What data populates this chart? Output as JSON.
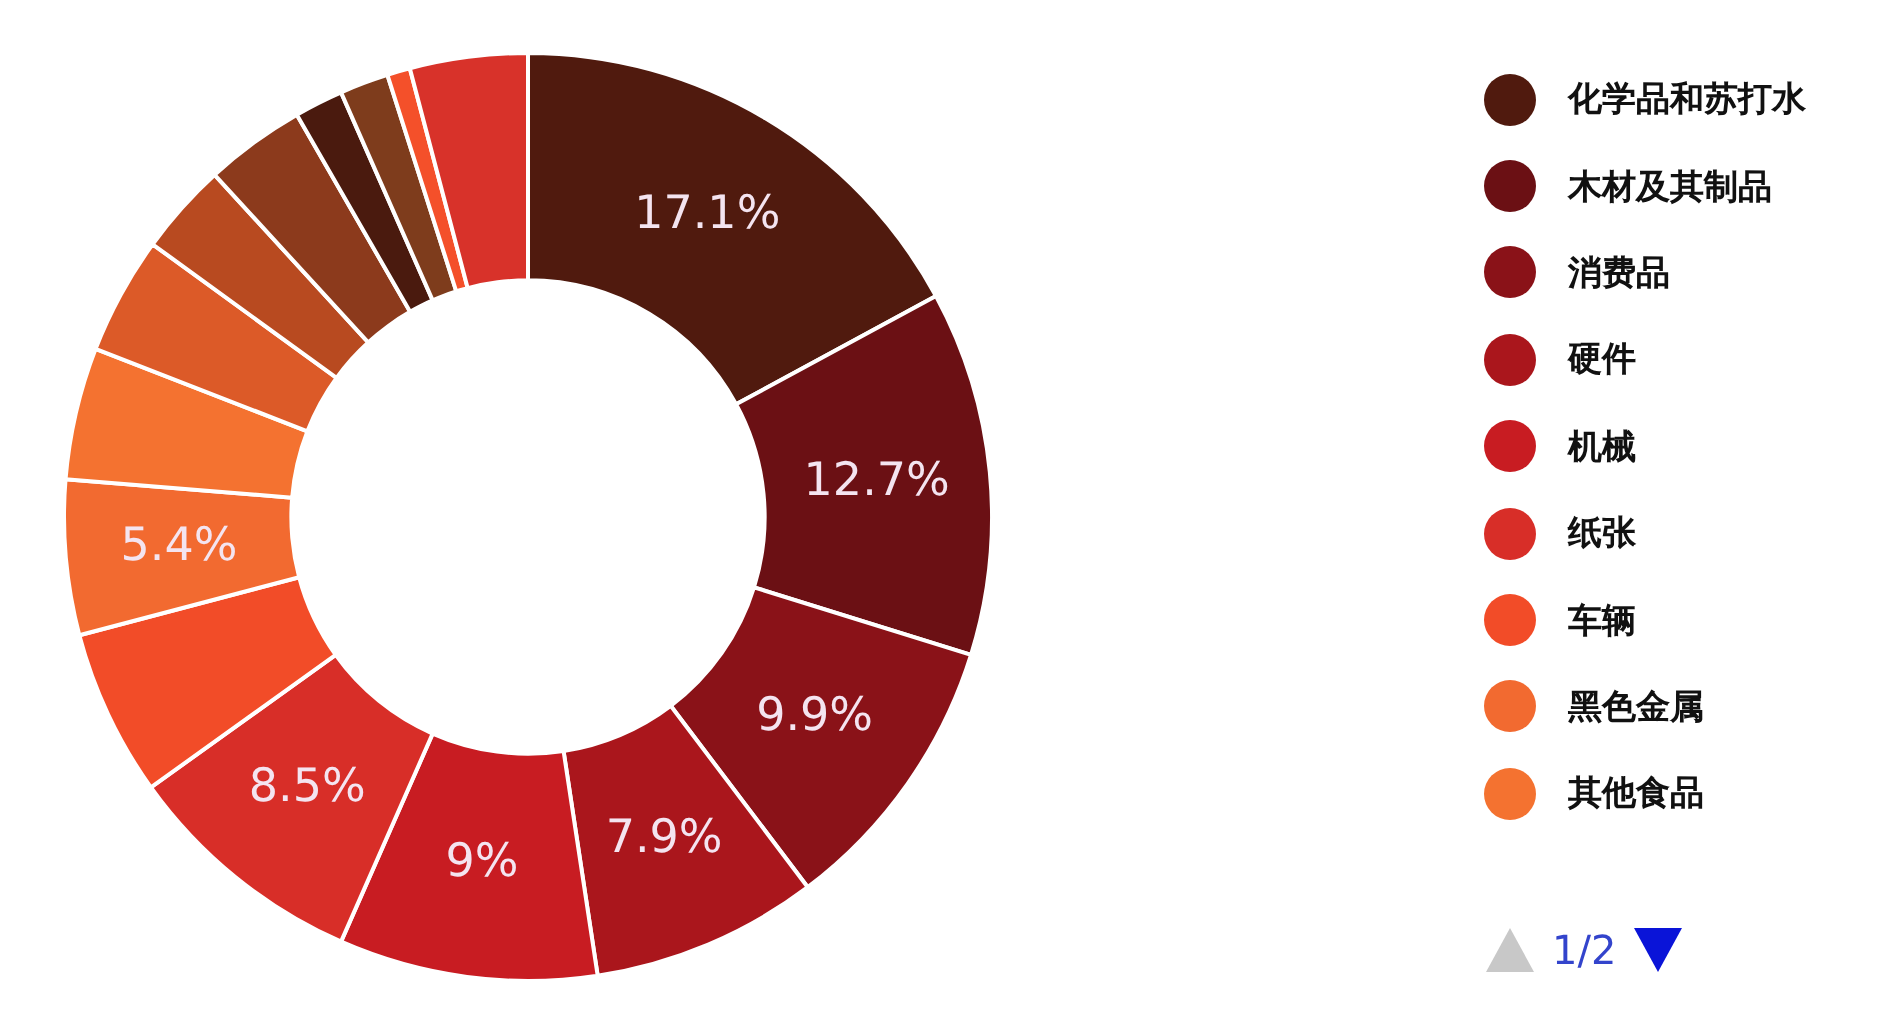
{
  "chart_data": {
    "type": "donut",
    "categories": [
      "化学品和苏打水",
      "木材及其制品",
      "消费品",
      "硬件",
      "机械",
      "纸张",
      "车辆",
      "黑色金属",
      "其他食品",
      null,
      null,
      null,
      null,
      null,
      null,
      null
    ],
    "values": [
      17.1,
      12.7,
      9.9,
      7.9,
      9,
      8.5,
      5.8,
      5.4,
      4.6,
      4.1,
      3.2,
      3.5,
      1.7,
      1.7,
      0.8,
      4.1
    ],
    "colors": [
      "#501a0e",
      "#6b1014",
      "#8a1218",
      "#aa161c",
      "#c81c22",
      "#d82e28",
      "#f24c28",
      "#f26a30",
      "#f47230",
      "#dc5a28",
      "#b84a20",
      "#8c3a1c",
      "#4a1a0e",
      "#7e3c1c",
      "#f4502a",
      "#d8322a"
    ],
    "value_labels": [
      "17.1%",
      "12.7%",
      "9.9%",
      "7.9%",
      "9%",
      "8.5%",
      null,
      "5.4%",
      null,
      null,
      null,
      null,
      null,
      null,
      null,
      null
    ],
    "legend": "top right",
    "annotations": [
      "1/2"
    ]
  }
}
